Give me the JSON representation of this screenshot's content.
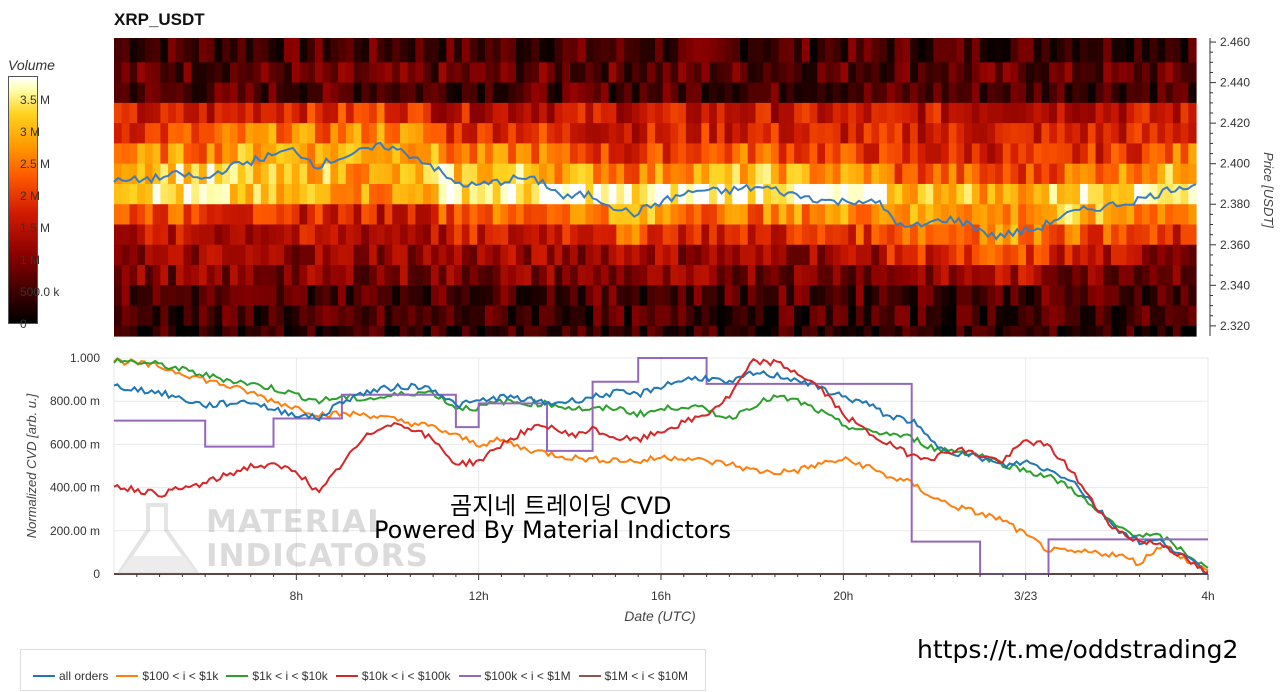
{
  "title": "XRP_USDT",
  "colorbar": {
    "title": "Volume",
    "ticks": [
      "3.5 M",
      "3 M",
      "2.5 M",
      "2 M",
      "1.5 M",
      "1 M",
      "500.0 k",
      "0"
    ]
  },
  "heatmap": {
    "ylabel": "Price [USDT]",
    "yticks": [
      "2.460",
      "2.440",
      "2.420",
      "2.400",
      "2.380",
      "2.360",
      "2.340",
      "2.320"
    ]
  },
  "cvd": {
    "ylabel": "Normalized CVD [arb. u.]",
    "xlabel": "Date (UTC)",
    "yticks": [
      "1.000",
      "800.00 m",
      "600.00 m",
      "400.00 m",
      "200.00 m",
      "0"
    ],
    "xticks": [
      "8h",
      "12h",
      "16h",
      "20h",
      "3/23",
      "4h"
    ]
  },
  "watermark": {
    "line1": "곰지네 트레이딩 CVD",
    "line2": "Powered By Material Indictors",
    "logo_line1": "MATERIAL",
    "logo_line2": "INDICATORS"
  },
  "link": "https://t.me/oddstrading2",
  "legend": [
    {
      "label": "all orders",
      "color": "#1f77b4"
    },
    {
      "label": "$100 < i < $1k",
      "color": "#ff7f0e"
    },
    {
      "label": "$1k < i < $10k",
      "color": "#2ca02c"
    },
    {
      "label": "$10k < i < $100k",
      "color": "#d62728"
    },
    {
      "label": "$100k < i < $1M",
      "color": "#9467bd"
    },
    {
      "label": "$1M < i < $10M",
      "color": "#8c564b"
    }
  ],
  "chart_data": [
    {
      "type": "heatmap",
      "title": "XRP_USDT",
      "xlabel": "",
      "ylabel": "Price [USDT]",
      "ylim": [
        2.315,
        2.462
      ],
      "colorbar_range": [
        0,
        3800000
      ],
      "price_levels": [
        2.455,
        2.445,
        2.435,
        2.425,
        2.415,
        2.405,
        2.395,
        2.385,
        2.375,
        2.365,
        2.355,
        2.345,
        2.335,
        2.325,
        2.317
      ],
      "level_volume_profile": [
        0.2,
        0.25,
        0.22,
        0.55,
        0.6,
        0.62,
        0.7,
        0.85,
        0.6,
        0.5,
        0.42,
        0.35,
        0.22,
        0.18,
        0.12
      ],
      "price_series": {
        "name": "price",
        "x_hours": [
          4.0,
          4.5,
          5.0,
          5.5,
          6.0,
          6.5,
          7.0,
          7.5,
          8.0,
          8.5,
          9.0,
          9.5,
          10.0,
          10.5,
          11.0,
          11.5,
          12.0,
          12.5,
          13.0,
          13.5,
          14.0,
          14.5,
          15.0,
          15.5,
          16.0,
          16.5,
          17.0,
          17.5,
          18.0,
          18.5,
          19.0,
          19.5,
          20.0,
          20.5,
          21.0,
          21.5,
          22.0,
          22.5,
          23.0,
          23.5,
          24.0,
          24.5,
          25.0,
          25.5,
          26.0,
          26.5,
          27.0,
          27.5,
          28.0
        ],
        "values": [
          2.391,
          2.392,
          2.393,
          2.395,
          2.392,
          2.398,
          2.401,
          2.404,
          2.407,
          2.399,
          2.403,
          2.406,
          2.409,
          2.405,
          2.4,
          2.391,
          2.389,
          2.391,
          2.393,
          2.391,
          2.383,
          2.385,
          2.38,
          2.375,
          2.38,
          2.384,
          2.387,
          2.386,
          2.388,
          2.388,
          2.385,
          2.383,
          2.381,
          2.382,
          2.38,
          2.368,
          2.37,
          2.373,
          2.37,
          2.364,
          2.366,
          2.368,
          2.374,
          2.377,
          2.379,
          2.381,
          2.384,
          2.388,
          2.39
        ]
      }
    },
    {
      "type": "line",
      "xlabel": "Date (UTC)",
      "ylabel": "Normalized CVD [arb. u.]",
      "xlim": [
        4.0,
        28.0
      ],
      "ylim": [
        0,
        1.0
      ],
      "xtick_hours": [
        8,
        12,
        16,
        20,
        24,
        28
      ],
      "x_hours": [
        4.0,
        5.0,
        6.0,
        7.0,
        7.5,
        8.0,
        8.5,
        9.0,
        9.5,
        10.0,
        10.5,
        11.0,
        11.5,
        12.0,
        12.5,
        13.0,
        13.5,
        14.0,
        14.5,
        15.0,
        15.5,
        16.0,
        16.5,
        17.0,
        17.5,
        18.0,
        18.5,
        19.0,
        19.5,
        20.0,
        20.5,
        21.0,
        21.5,
        22.0,
        22.5,
        23.0,
        23.5,
        24.0,
        24.5,
        25.0,
        25.5,
        26.0,
        26.5,
        27.0,
        27.5,
        28.0
      ],
      "series": [
        {
          "name": "all orders",
          "values": [
            0.87,
            0.84,
            0.78,
            0.8,
            0.76,
            0.74,
            0.72,
            0.8,
            0.84,
            0.86,
            0.87,
            0.86,
            0.78,
            0.8,
            0.82,
            0.81,
            0.79,
            0.8,
            0.82,
            0.84,
            0.83,
            0.87,
            0.9,
            0.91,
            0.88,
            0.93,
            0.92,
            0.9,
            0.86,
            0.82,
            0.79,
            0.73,
            0.71,
            0.6,
            0.56,
            0.54,
            0.5,
            0.52,
            0.48,
            0.44,
            0.32,
            0.21,
            0.15,
            0.15,
            0.08,
            0.0
          ]
        },
        {
          "name": "$100 < i < $1k",
          "values": [
            0.99,
            0.96,
            0.9,
            0.84,
            0.8,
            0.77,
            0.74,
            0.74,
            0.74,
            0.72,
            0.7,
            0.68,
            0.64,
            0.6,
            0.62,
            0.58,
            0.56,
            0.54,
            0.53,
            0.53,
            0.52,
            0.54,
            0.54,
            0.52,
            0.51,
            0.48,
            0.47,
            0.48,
            0.51,
            0.53,
            0.5,
            0.45,
            0.42,
            0.35,
            0.31,
            0.28,
            0.25,
            0.18,
            0.11,
            0.1,
            0.1,
            0.09,
            0.05,
            0.14,
            0.07,
            0.01
          ]
        },
        {
          "name": "$1k < i < $10k",
          "values": [
            0.99,
            0.97,
            0.92,
            0.88,
            0.86,
            0.83,
            0.8,
            0.82,
            0.81,
            0.82,
            0.84,
            0.84,
            0.77,
            0.77,
            0.8,
            0.79,
            0.79,
            0.77,
            0.76,
            0.77,
            0.74,
            0.76,
            0.78,
            0.76,
            0.72,
            0.78,
            0.82,
            0.8,
            0.75,
            0.69,
            0.66,
            0.65,
            0.63,
            0.58,
            0.57,
            0.55,
            0.51,
            0.48,
            0.45,
            0.4,
            0.3,
            0.22,
            0.18,
            0.17,
            0.1,
            0.02
          ]
        },
        {
          "name": "$10k < i < $100k",
          "values": [
            0.41,
            0.37,
            0.42,
            0.5,
            0.5,
            0.48,
            0.37,
            0.51,
            0.63,
            0.7,
            0.68,
            0.62,
            0.51,
            0.52,
            0.6,
            0.66,
            0.69,
            0.64,
            0.67,
            0.63,
            0.62,
            0.66,
            0.7,
            0.74,
            0.82,
            0.98,
            0.98,
            0.93,
            0.86,
            0.74,
            0.66,
            0.6,
            0.55,
            0.54,
            0.58,
            0.55,
            0.52,
            0.62,
            0.59,
            0.48,
            0.32,
            0.2,
            0.15,
            0.14,
            0.07,
            0.0
          ]
        },
        {
          "name": "$100k < i < $1M",
          "values": [
            0.71,
            0.71,
            0.59,
            0.59,
            0.72,
            0.72,
            0.72,
            0.83,
            0.83,
            0.83,
            0.83,
            0.83,
            0.68,
            0.79,
            0.79,
            0.79,
            0.57,
            0.57,
            0.89,
            0.89,
            1.0,
            1.0,
            1.0,
            0.88,
            0.88,
            0.88,
            0.88,
            0.88,
            0.88,
            0.88,
            0.88,
            0.88,
            0.15,
            0.15,
            0.15,
            0.0,
            0.0,
            0.0,
            0.16,
            0.16,
            0.16,
            0.16,
            0.16,
            0.16,
            0.16,
            0.16
          ]
        },
        {
          "name": "$1M < i < $10M",
          "values": [
            0.0,
            0.0,
            0.0,
            0.0,
            0.0,
            0.0,
            0.0,
            0.0,
            0.0,
            0.0,
            0.0,
            0.0,
            0.0,
            0.0,
            0.0,
            0.0,
            0.0,
            0.0,
            0.0,
            0.0,
            0.0,
            0.0,
            0.0,
            0.0,
            0.0,
            0.0,
            0.0,
            0.0,
            0.0,
            0.0,
            0.0,
            0.0,
            0.0,
            0.0,
            0.0,
            0.0,
            0.0,
            0.0,
            0.0,
            0.0,
            0.0,
            0.0,
            0.0,
            0.0,
            0.0,
            0.0
          ]
        }
      ]
    }
  ]
}
